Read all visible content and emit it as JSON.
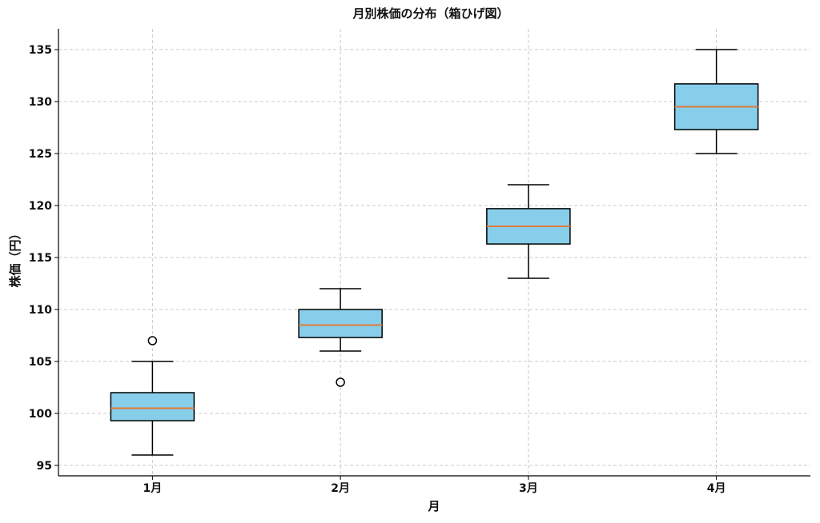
{
  "chart_data": {
    "type": "box",
    "title": "月別株価の分布（箱ひげ図）",
    "xlabel": "月",
    "ylabel": "株価（円）",
    "categories": [
      "1月",
      "2月",
      "3月",
      "4月"
    ],
    "yticks": [
      "95",
      "100",
      "105",
      "110",
      "115",
      "120",
      "125",
      "130",
      "135"
    ],
    "ylim": [
      94,
      137
    ],
    "grid": true,
    "colors": {
      "box_fill": "#87ceeb",
      "box_edge": "#000000",
      "median": "#e07b39",
      "outlier_fill": "#ffffff",
      "outlier_edge": "#000000"
    },
    "boxes": [
      {
        "category": "1月",
        "whisker_low": 96,
        "q1": 99.3,
        "median": 100.5,
        "q3": 102,
        "whisker_high": 105,
        "outliers": [
          107
        ]
      },
      {
        "category": "2月",
        "whisker_low": 106,
        "q1": 107.3,
        "median": 108.5,
        "q3": 110,
        "whisker_high": 112,
        "outliers": [
          103
        ]
      },
      {
        "category": "3月",
        "whisker_low": 113,
        "q1": 116.3,
        "median": 118,
        "q3": 119.7,
        "whisker_high": 122,
        "outliers": []
      },
      {
        "category": "4月",
        "whisker_low": 125,
        "q1": 127.3,
        "median": 129.5,
        "q3": 131.7,
        "whisker_high": 135,
        "outliers": []
      }
    ]
  }
}
